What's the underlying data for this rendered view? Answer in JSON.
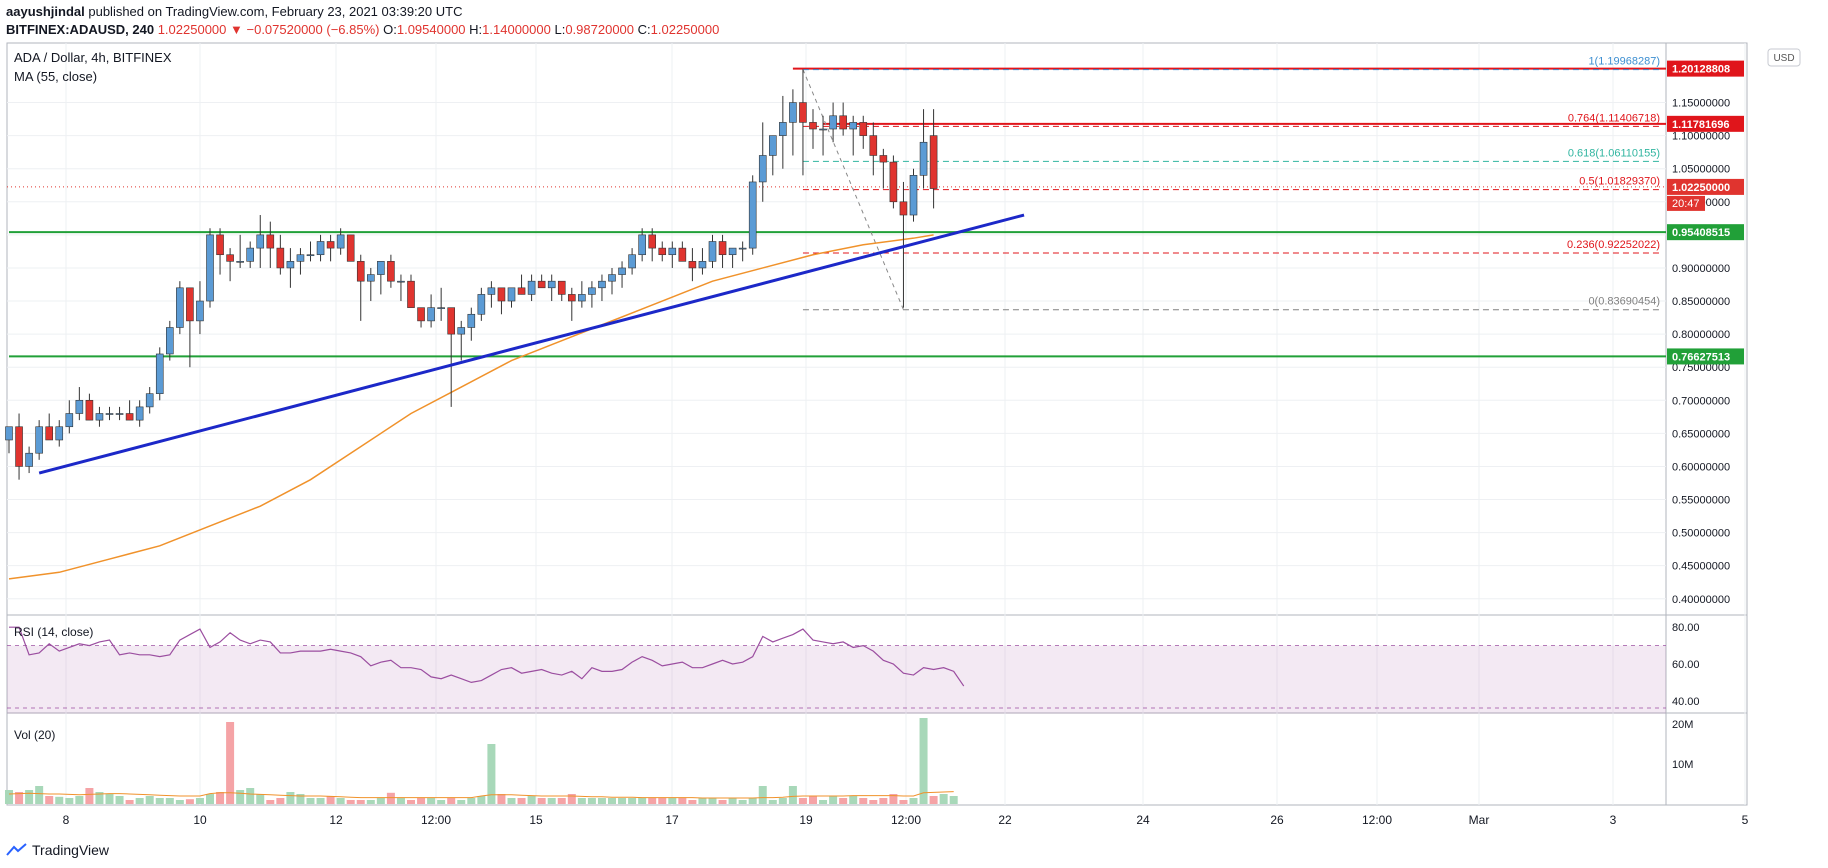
{
  "header": {
    "publisher": "aayushjindal",
    "published_text": " published on TradingView.com, February 23, 2021 03:39:20 UTC",
    "symbol": "BITFINEX:ADAUSD, 240",
    "price": "1.02250000",
    "change": "▼ −0.07520000 (−6.85%)",
    "o_label": "O:",
    "o": "1.09540000",
    "h_label": "H:",
    "h": "1.14000000",
    "l_label": "L:",
    "l": "0.98720000",
    "c_label": "C:",
    "c": "1.02250000"
  },
  "legend": {
    "pair": "ADA / Dollar, 4h, BITFINEX",
    "ma": "MA (55, close)",
    "rsi": "RSI (14, close)",
    "vol": "Vol (20)"
  },
  "currency_badge": "USD",
  "colors": {
    "up": "#5b9bd5",
    "down": "#e0342f",
    "ma": "#f0922b",
    "trendline": "#1c28c8",
    "support": "#21a038",
    "resistance": "#e0151b",
    "rsi": "#9b4ea0",
    "fib_green": "#30b5a0",
    "fib_blue": "#3d8fd1",
    "fib_gray": "#808080"
  },
  "chart_data": [
    {
      "type": "candlestick",
      "title": "ADA / Dollar, 4h, BITFINEX",
      "ylim": [
        0.38,
        1.24
      ],
      "x_ticks": [
        "8",
        "10",
        "12",
        "12:00",
        "15",
        "17",
        "19",
        "12:00",
        "22",
        "24",
        "26",
        "12:00",
        "Mar",
        "3",
        "5"
      ],
      "y_ticks": [
        "1.15000000",
        "1.10000000",
        "1.05000000",
        "1.00000000",
        "0.95000000",
        "0.90000000",
        "0.85000000",
        "0.80000000",
        "0.75000000",
        "0.70000000",
        "0.65000000",
        "0.60000000",
        "0.55000000",
        "0.50000000",
        "0.45000000",
        "0.40000000"
      ],
      "candles": [
        [
          0.64,
          0.66,
          0.62,
          0.66
        ],
        [
          0.66,
          0.68,
          0.58,
          0.6
        ],
        [
          0.6,
          0.63,
          0.59,
          0.62
        ],
        [
          0.62,
          0.67,
          0.61,
          0.66
        ],
        [
          0.66,
          0.68,
          0.64,
          0.64
        ],
        [
          0.64,
          0.67,
          0.63,
          0.66
        ],
        [
          0.66,
          0.7,
          0.65,
          0.68
        ],
        [
          0.68,
          0.72,
          0.67,
          0.7
        ],
        [
          0.7,
          0.71,
          0.67,
          0.67
        ],
        [
          0.67,
          0.69,
          0.66,
          0.68
        ],
        [
          0.68,
          0.69,
          0.67,
          0.68
        ],
        [
          0.68,
          0.69,
          0.67,
          0.68
        ],
        [
          0.68,
          0.7,
          0.67,
          0.67
        ],
        [
          0.67,
          0.7,
          0.66,
          0.69
        ],
        [
          0.69,
          0.72,
          0.68,
          0.71
        ],
        [
          0.71,
          0.78,
          0.7,
          0.77
        ],
        [
          0.77,
          0.82,
          0.76,
          0.81
        ],
        [
          0.81,
          0.88,
          0.8,
          0.87
        ],
        [
          0.87,
          0.87,
          0.75,
          0.82
        ],
        [
          0.82,
          0.88,
          0.8,
          0.85
        ],
        [
          0.85,
          0.96,
          0.84,
          0.95
        ],
        [
          0.95,
          0.96,
          0.89,
          0.92
        ],
        [
          0.92,
          0.93,
          0.88,
          0.91
        ],
        [
          0.91,
          0.95,
          0.9,
          0.91
        ],
        [
          0.91,
          0.94,
          0.9,
          0.93
        ],
        [
          0.93,
          0.98,
          0.9,
          0.95
        ],
        [
          0.95,
          0.97,
          0.9,
          0.93
        ],
        [
          0.93,
          0.95,
          0.89,
          0.9
        ],
        [
          0.9,
          0.93,
          0.87,
          0.91
        ],
        [
          0.91,
          0.93,
          0.89,
          0.92
        ],
        [
          0.92,
          0.94,
          0.91,
          0.92
        ],
        [
          0.92,
          0.95,
          0.91,
          0.94
        ],
        [
          0.94,
          0.95,
          0.91,
          0.93
        ],
        [
          0.93,
          0.96,
          0.92,
          0.95
        ],
        [
          0.95,
          0.95,
          0.91,
          0.91
        ],
        [
          0.91,
          0.92,
          0.82,
          0.88
        ],
        [
          0.88,
          0.9,
          0.85,
          0.89
        ],
        [
          0.89,
          0.91,
          0.86,
          0.91
        ],
        [
          0.91,
          0.92,
          0.87,
          0.88
        ],
        [
          0.88,
          0.89,
          0.85,
          0.88
        ],
        [
          0.88,
          0.89,
          0.84,
          0.84
        ],
        [
          0.84,
          0.84,
          0.81,
          0.82
        ],
        [
          0.82,
          0.86,
          0.81,
          0.84
        ],
        [
          0.84,
          0.87,
          0.82,
          0.84
        ],
        [
          0.84,
          0.84,
          0.69,
          0.8
        ],
        [
          0.8,
          0.82,
          0.76,
          0.81
        ],
        [
          0.81,
          0.84,
          0.79,
          0.83
        ],
        [
          0.83,
          0.87,
          0.82,
          0.86
        ],
        [
          0.86,
          0.88,
          0.84,
          0.87
        ],
        [
          0.87,
          0.87,
          0.83,
          0.85
        ],
        [
          0.85,
          0.87,
          0.84,
          0.87
        ],
        [
          0.87,
          0.89,
          0.86,
          0.86
        ],
        [
          0.86,
          0.89,
          0.85,
          0.88
        ],
        [
          0.88,
          0.89,
          0.87,
          0.87
        ],
        [
          0.87,
          0.89,
          0.85,
          0.88
        ],
        [
          0.88,
          0.88,
          0.85,
          0.86
        ],
        [
          0.86,
          0.87,
          0.82,
          0.85
        ],
        [
          0.85,
          0.88,
          0.84,
          0.86
        ],
        [
          0.86,
          0.88,
          0.84,
          0.87
        ],
        [
          0.87,
          0.89,
          0.85,
          0.88
        ],
        [
          0.88,
          0.9,
          0.86,
          0.89
        ],
        [
          0.89,
          0.91,
          0.87,
          0.9
        ],
        [
          0.9,
          0.93,
          0.89,
          0.92
        ],
        [
          0.92,
          0.96,
          0.91,
          0.95
        ],
        [
          0.95,
          0.96,
          0.91,
          0.93
        ],
        [
          0.93,
          0.94,
          0.91,
          0.92
        ],
        [
          0.92,
          0.94,
          0.9,
          0.93
        ],
        [
          0.93,
          0.94,
          0.91,
          0.91
        ],
        [
          0.91,
          0.93,
          0.88,
          0.9
        ],
        [
          0.9,
          0.93,
          0.89,
          0.91
        ],
        [
          0.91,
          0.95,
          0.9,
          0.94
        ],
        [
          0.94,
          0.95,
          0.9,
          0.92
        ],
        [
          0.92,
          0.93,
          0.9,
          0.93
        ],
        [
          0.93,
          0.94,
          0.91,
          0.93
        ],
        [
          0.93,
          1.04,
          0.92,
          1.03
        ],
        [
          1.03,
          1.12,
          1.0,
          1.07
        ],
        [
          1.07,
          1.1,
          1.04,
          1.1
        ],
        [
          1.1,
          1.16,
          1.05,
          1.12
        ],
        [
          1.12,
          1.17,
          1.07,
          1.15
        ],
        [
          1.15,
          1.2,
          1.04,
          1.12
        ],
        [
          1.12,
          1.14,
          1.08,
          1.11
        ],
        [
          1.11,
          1.13,
          1.07,
          1.11
        ],
        [
          1.11,
          1.15,
          1.09,
          1.13
        ],
        [
          1.13,
          1.15,
          1.1,
          1.11
        ],
        [
          1.11,
          1.13,
          1.07,
          1.12
        ],
        [
          1.12,
          1.13,
          1.08,
          1.1
        ],
        [
          1.1,
          1.12,
          1.04,
          1.07
        ],
        [
          1.07,
          1.08,
          1.02,
          1.06
        ],
        [
          1.06,
          1.07,
          0.99,
          1.0
        ],
        [
          1.0,
          1.03,
          0.84,
          0.98
        ],
        [
          0.98,
          1.05,
          0.97,
          1.04
        ],
        [
          1.04,
          1.14,
          1.02,
          1.09
        ],
        [
          1.1,
          1.14,
          0.99,
          1.02
        ]
      ],
      "ma55": [
        [
          0,
          0.43
        ],
        [
          5,
          0.44
        ],
        [
          10,
          0.46
        ],
        [
          15,
          0.48
        ],
        [
          20,
          0.51
        ],
        [
          25,
          0.54
        ],
        [
          30,
          0.58
        ],
        [
          35,
          0.63
        ],
        [
          40,
          0.68
        ],
        [
          45,
          0.72
        ],
        [
          50,
          0.76
        ],
        [
          55,
          0.79
        ],
        [
          60,
          0.82
        ],
        [
          65,
          0.85
        ],
        [
          70,
          0.88
        ],
        [
          75,
          0.9
        ],
        [
          80,
          0.92
        ],
        [
          85,
          0.935
        ],
        [
          90,
          0.945
        ],
        [
          92,
          0.95
        ]
      ],
      "trendline": [
        [
          3,
          0.59
        ],
        [
          101,
          0.98
        ]
      ],
      "horizontal_levels": [
        {
          "value": 1.20128808,
          "label": "1.20128808",
          "color": "resistance",
          "x_from": 78
        },
        {
          "value": 1.11781696,
          "label": "1.11781696",
          "color": "resistance",
          "x_from": 81
        },
        {
          "value": 0.95408515,
          "label": "0.95408515",
          "color": "support",
          "x_from": 0
        },
        {
          "value": 0.76627513,
          "label": "0.76627513",
          "color": "support",
          "x_from": 0
        }
      ],
      "current_price": {
        "value": 1.0225,
        "label": "1.02250000",
        "countdown": "20:47"
      },
      "fib_levels": [
        {
          "ratio": "1",
          "value": 1.19968287,
          "label": "1(1.19968287)",
          "color": "fib_blue"
        },
        {
          "ratio": "0.764",
          "value": 1.11406718,
          "label": "0.764(1.11406718)",
          "color": "resistance"
        },
        {
          "ratio": "0.618",
          "value": 1.06110155,
          "label": "0.618(1.06110155)",
          "color": "fib_green"
        },
        {
          "ratio": "0.5",
          "value": 1.0182937,
          "label": "0.5(1.01829370)",
          "color": "resistance"
        },
        {
          "ratio": "0.236",
          "value": 0.92252022,
          "label": "0.236(0.92252022)",
          "color": "resistance"
        },
        {
          "ratio": "0",
          "value": 0.83690454,
          "label": "0(0.83690454)",
          "color": "fib_gray"
        }
      ]
    },
    {
      "type": "line",
      "title": "RSI (14, close)",
      "ylim": [
        35,
        85
      ],
      "y_ticks": [
        "80.00",
        "60.00",
        "40.00"
      ],
      "bands": [
        70,
        30
      ],
      "values": [
        80,
        80,
        65,
        66,
        71,
        67,
        69,
        71,
        70,
        72,
        73,
        65,
        66,
        65,
        65,
        64,
        65,
        73,
        76,
        79,
        69,
        72,
        77,
        73,
        71,
        73,
        72,
        66,
        66,
        67,
        67,
        67,
        68,
        67,
        66,
        64,
        59,
        61,
        62,
        58,
        58,
        57,
        53,
        52,
        54,
        52,
        50,
        51,
        54,
        57,
        58,
        55,
        56,
        57,
        55,
        54,
        56,
        52,
        58,
        56,
        56,
        57,
        61,
        64,
        62,
        59,
        60,
        61,
        58,
        58,
        60,
        62,
        60,
        61,
        64,
        75,
        72,
        74,
        76,
        79,
        73,
        72,
        71,
        72,
        69,
        70,
        67,
        62,
        60,
        55,
        54,
        58,
        57,
        58,
        56,
        48
      ]
    },
    {
      "type": "bar",
      "title": "Vol (20)",
      "ylim": [
        0,
        22
      ],
      "y_ticks": [
        "20M",
        "10M"
      ],
      "values": [
        3.5,
        3.0,
        3.5,
        4.5,
        2.0,
        1.8,
        1.5,
        2.0,
        4.0,
        3.0,
        2.5,
        2.0,
        1.0,
        1.5,
        2.0,
        1.5,
        1.5,
        1.0,
        1.2,
        1.5,
        2.5,
        3.0,
        20.5,
        3.5,
        4.0,
        2.5,
        1.0,
        1.5,
        3.0,
        2.5,
        1.5,
        1.5,
        2.0,
        1.5,
        1.0,
        1.0,
        1.0,
        1.5,
        2.8,
        1.5,
        1.0,
        1.5,
        1.5,
        1.0,
        1.5,
        1.0,
        1.5,
        2.0,
        15.0,
        2.5,
        1.5,
        1.5,
        2.0,
        1.5,
        1.5,
        1.5,
        2.5,
        1.5,
        1.5,
        1.5,
        1.5,
        1.5,
        1.5,
        1.5,
        1.5,
        1.5,
        1.5,
        1.5,
        1.0,
        1.5,
        1.5,
        1.0,
        1.5,
        1.0,
        1.5,
        4.5,
        1.0,
        1.5,
        4.5,
        1.5,
        2.0,
        1.0,
        2.0,
        1.5,
        2.0,
        1.5,
        1.0,
        1.5,
        2.5,
        1.0,
        1.5,
        21.5,
        2.0,
        2.5,
        2.0
      ],
      "ma20": [
        2.5,
        2.6,
        2.7,
        2.6,
        2.5,
        2.5,
        2.4,
        2.3,
        2.4,
        2.5,
        2.6,
        2.6,
        2.5,
        2.4,
        2.3,
        2.2,
        2.1,
        2.0,
        2.0,
        2.0,
        2.6,
        2.8,
        2.8,
        2.7,
        2.5,
        2.4,
        2.3,
        2.2,
        2.1,
        2.0,
        2.0,
        2.0,
        1.9,
        1.8,
        1.7,
        1.6,
        1.6,
        1.6,
        1.6,
        1.6,
        1.6,
        1.6,
        1.6,
        1.6,
        1.6,
        1.6,
        1.6,
        2.0,
        2.3,
        2.3,
        2.3,
        2.2,
        2.1,
        2.0,
        2.0,
        2.0,
        2.0,
        1.9,
        1.8,
        1.8,
        1.7,
        1.7,
        1.7,
        1.6,
        1.6,
        1.6,
        1.6,
        1.6,
        1.6,
        1.5,
        1.5,
        1.5,
        1.5,
        1.5,
        1.5,
        1.6,
        1.6,
        1.7,
        1.9,
        2.0,
        2.0,
        2.0,
        2.0,
        2.0,
        2.1,
        2.1,
        2.1,
        2.1,
        2.1,
        2.0,
        2.0,
        2.8,
        2.9,
        3.0,
        3.1
      ]
    }
  ],
  "footer": {
    "brand": "TradingView"
  }
}
